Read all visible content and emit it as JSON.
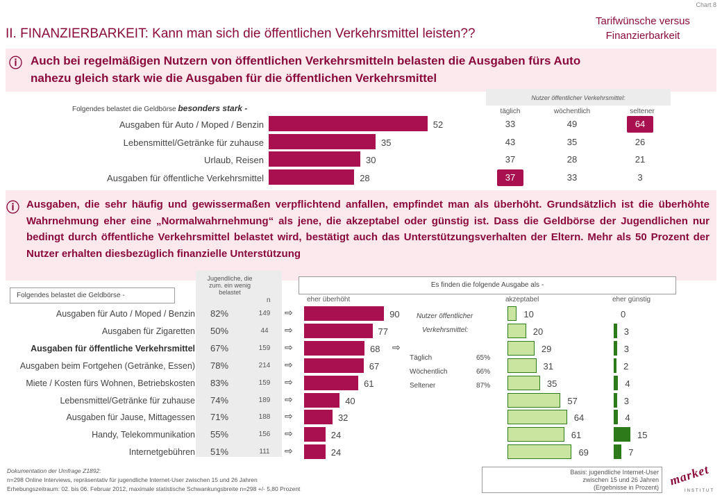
{
  "chart_no": "Chart 8",
  "header": {
    "title": "II. FINANZIERBARKEIT: Kann man sich die öffentlichen Verkehrsmittel leisten??",
    "subject_line1": "Tarifwünsche versus",
    "subject_line2": "Finanzierbarkeit"
  },
  "info_icon": "ⓘ",
  "headline1_line1": "Auch bei regelmäßigen Nutzern von öffentlichen Verkehrsmitteln belasten die Ausgaben fürs Auto",
  "headline1_line2": "nahezu gleich stark wie die Ausgaben für die öffentlichen Verkehrsmittel",
  "paragraph2": "Ausgaben, die sehr häufig und gewissermaßen verpflichtend anfallen, empfindet man als überhöht. Grundsätzlich ist die überhöhte Wahrnehmung eher eine „Normalwahrnehmung“ als jene, die akzeptabel oder günstig ist. Dass die Geldbörse der Jugendlichen nur bedingt durch öffentliche Verkehrsmittel belastet wird, bestätigt auch das Unterstützungsverhalten der Eltern. Mehr als 50 Prozent der Nutzer erhalten diesbezüglich finanzielle Unterstützung",
  "colors": {
    "bar": "#a8104f",
    "accent": "#8a0a3c",
    "band": "#fbe9ee",
    "green_light": "#c9e5a0",
    "green_dark": "#2d7a1b"
  },
  "chart_data": [
    {
      "type": "bar",
      "title": "Folgendes belastet die Geldbörse besonders stark -",
      "title_prefix": "Folgendes belastet die Geldbörse ",
      "title_emph": "besonders stark -",
      "categories": [
        "Ausgaben für Auto / Moped / Benzin",
        "Lebensmittel/Getränke für zuhause",
        "Urlaub, Reisen",
        "Ausgaben für öffentliche Verkehrsmittel"
      ],
      "values": [
        52,
        35,
        30,
        28
      ],
      "table": {
        "header": "Nutzer öffentlicher Verkehrsmittel:",
        "columns": [
          "täglich",
          "wöchentlich",
          "seltener"
        ],
        "rows": [
          [
            "33",
            "49",
            "64"
          ],
          [
            "43",
            "35",
            "26"
          ],
          [
            "37",
            "28",
            "21"
          ],
          [
            "37",
            "33",
            "3"
          ]
        ]
      }
    },
    {
      "type": "bar",
      "box_label": "Folgendes belastet die Geldbörse -",
      "share_header": "Jugendliche, die zum. ein wenig belastet",
      "n_label": "n",
      "question": "Es finden die folgende Ausgabe als -",
      "column_labels": [
        "eher überhöht",
        "akzeptabel",
        "eher günstig"
      ],
      "categories": [
        "Ausgaben für Auto / Moped / Benzin",
        "Ausgaben für Zigaretten",
        "Ausgaben für öffentliche Verkehrsmittel",
        "Ausgaben beim Fortgehen (Getränke, Essen)",
        "Miete / Kosten fürs Wohnen, Betriebskosten",
        "Lebensmittel/Getränke für zuhause",
        "Ausgaben für Jause, Mittagessen",
        "Handy, Telekommunikation",
        "Internetgebühren"
      ],
      "share": [
        "82%",
        "50%",
        "67%",
        "78%",
        "83%",
        "74%",
        "71%",
        "55%",
        "51%"
      ],
      "n": [
        "149",
        "44",
        "159",
        "214",
        "159",
        "189",
        "188",
        "156",
        "111"
      ],
      "series": [
        {
          "name": "eher überhöht",
          "values": [
            90,
            77,
            68,
            67,
            61,
            40,
            32,
            24,
            24
          ]
        },
        {
          "name": "akzeptabel",
          "values": [
            10,
            20,
            29,
            31,
            35,
            57,
            64,
            61,
            69
          ]
        },
        {
          "name": "eher günstig",
          "values": [
            0,
            3,
            3,
            2,
            4,
            3,
            4,
            15,
            7
          ]
        }
      ],
      "callout": {
        "title_line1": "Nutzer öffentlicher",
        "title_line2": "Verkehrsmittel:",
        "rows": [
          [
            "Täglich",
            "65%"
          ],
          [
            "Wöchentlich",
            "66%"
          ],
          [
            "Seltener",
            "87%"
          ]
        ]
      }
    }
  ],
  "footer": {
    "doc_title": "Dokumentation der Umfrage Z1892:",
    "doc_line2": "n=298 Online Interviews, repräsentativ für jugendliche Internet-User zwischen 15 und 26 Jahren",
    "doc_line3": "Erhebungszeitraum: 02. bis 06. Februar 2012, maximale statistische Schwankungsbreite n=298 +/- 5,80 Prozent",
    "basis_line1": "Basis: jugendliche Internet-User",
    "basis_line2": "zwischen 15 und 26 Jahren",
    "basis_line3": "(Ergebnisse in Prozent)",
    "logo_word": "market",
    "logo_sub": "INSTITUT"
  }
}
